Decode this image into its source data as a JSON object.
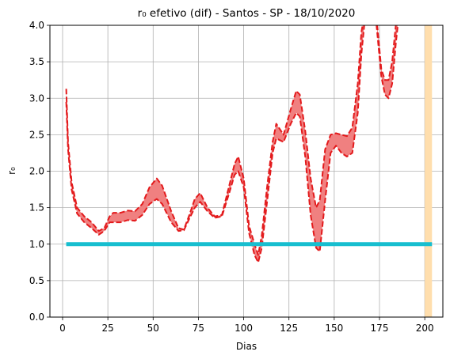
{
  "chart_data": {
    "type": "area",
    "title": "r₀ efetivo (dif) - Santos - SP - 18/10/2020",
    "xlabel": "Dias",
    "ylabel": "r₀",
    "xlim": [
      -7,
      210
    ],
    "ylim": [
      0,
      4.0
    ],
    "xticks": [
      0,
      25,
      50,
      75,
      100,
      125,
      150,
      175,
      200
    ],
    "yticks": [
      0.0,
      0.5,
      1.0,
      1.5,
      2.0,
      2.5,
      3.0,
      3.5,
      4.0
    ],
    "grid": true,
    "colors": {
      "band_fill": "#f08080",
      "band_edge": "#e31a1c",
      "reference": "#17becf",
      "highlight": "#ffdead"
    },
    "highlight_span": [
      200,
      204
    ],
    "reference_line": {
      "x": [
        2,
        204
      ],
      "y": 1.0
    },
    "series": [
      {
        "x": [
          2,
          3,
          5,
          8,
          12,
          16,
          20,
          23,
          26,
          28,
          32,
          36,
          40,
          44,
          48,
          52,
          55,
          60,
          64,
          67,
          70,
          73,
          76,
          80,
          84,
          88,
          92,
          95,
          97,
          100,
          103,
          106,
          108,
          110,
          113,
          116,
          118,
          122,
          126,
          129,
          131,
          134,
          137,
          140,
          142,
          145,
          148,
          151,
          154,
          157,
          160,
          163,
          165,
          167,
          170,
          173,
          176,
          178,
          180,
          182,
          184,
          186
        ],
        "values": [
          3.13,
          2.4,
          1.85,
          1.5,
          1.38,
          1.3,
          1.18,
          1.22,
          1.38,
          1.43,
          1.43,
          1.46,
          1.45,
          1.55,
          1.78,
          1.9,
          1.8,
          1.45,
          1.22,
          1.2,
          1.4,
          1.62,
          1.7,
          1.5,
          1.38,
          1.4,
          1.8,
          2.1,
          2.2,
          1.9,
          1.25,
          1.0,
          0.85,
          1.12,
          1.8,
          2.4,
          2.65,
          2.5,
          2.85,
          3.1,
          3.05,
          2.55,
          1.9,
          1.5,
          1.6,
          2.3,
          2.5,
          2.52,
          2.5,
          2.48,
          2.6,
          3.2,
          3.9,
          4.2,
          4.6,
          4.2,
          3.4,
          3.25,
          3.25,
          3.5,
          4.0,
          4.4
        ]
      },
      {
        "x": [
          2,
          3,
          5,
          8,
          12,
          16,
          20,
          23,
          26,
          28,
          32,
          36,
          40,
          44,
          48,
          52,
          55,
          60,
          64,
          67,
          70,
          73,
          76,
          80,
          84,
          88,
          92,
          95,
          97,
          100,
          103,
          106,
          108,
          110,
          113,
          116,
          118,
          122,
          126,
          129,
          131,
          134,
          137,
          140,
          142,
          145,
          148,
          151,
          154,
          157,
          160,
          163,
          165,
          167,
          170,
          173,
          176,
          178,
          180,
          182,
          184,
          186
        ],
        "values": [
          2.95,
          2.3,
          1.75,
          1.42,
          1.3,
          1.22,
          1.13,
          1.18,
          1.3,
          1.3,
          1.3,
          1.33,
          1.32,
          1.4,
          1.55,
          1.62,
          1.55,
          1.3,
          1.18,
          1.19,
          1.35,
          1.5,
          1.58,
          1.45,
          1.36,
          1.38,
          1.7,
          1.95,
          2.0,
          1.78,
          1.15,
          0.85,
          0.75,
          0.95,
          1.6,
          2.25,
          2.45,
          2.4,
          2.65,
          2.8,
          2.75,
          2.2,
          1.4,
          0.95,
          0.9,
          1.6,
          2.25,
          2.35,
          2.25,
          2.2,
          2.25,
          2.8,
          3.6,
          4.1,
          4.4,
          4.1,
          3.3,
          3.05,
          3.0,
          3.2,
          3.75,
          4.2
        ]
      }
    ]
  }
}
